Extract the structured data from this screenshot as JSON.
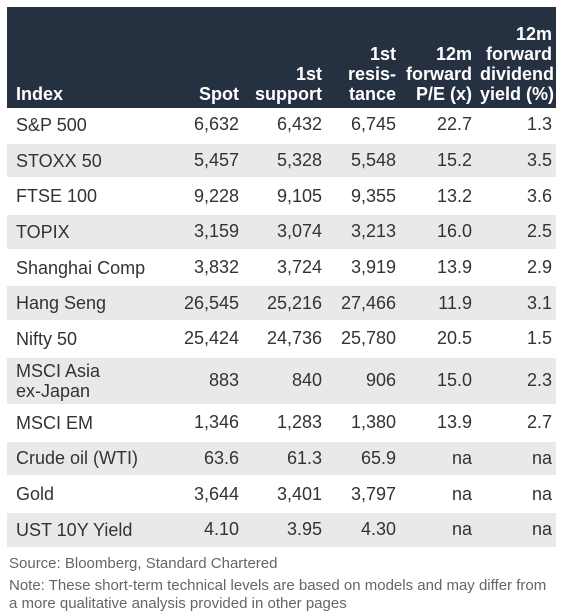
{
  "table": {
    "headers": [
      {
        "lines": [
          "Index"
        ]
      },
      {
        "lines": [
          "Spot"
        ]
      },
      {
        "lines": [
          "1st",
          "support"
        ]
      },
      {
        "lines": [
          "1st",
          "resis-",
          "tance"
        ]
      },
      {
        "lines": [
          "12m",
          "forward",
          "P/E (x)"
        ]
      },
      {
        "lines": [
          "12m",
          "forward",
          "dividend",
          "yield (%)"
        ]
      }
    ],
    "rows": [
      {
        "index": [
          "S&P 500"
        ],
        "spot": "6,632",
        "support": "6,432",
        "resistance": "6,745",
        "pe": "22.7",
        "yield": "1.3"
      },
      {
        "index": [
          "STOXX 50"
        ],
        "spot": "5,457",
        "support": "5,328",
        "resistance": "5,548",
        "pe": "15.2",
        "yield": "3.5"
      },
      {
        "index": [
          "FTSE 100"
        ],
        "spot": "9,228",
        "support": "9,105",
        "resistance": "9,355",
        "pe": "13.2",
        "yield": "3.6"
      },
      {
        "index": [
          "TOPIX"
        ],
        "spot": "3,159",
        "support": "3,074",
        "resistance": "3,213",
        "pe": "16.0",
        "yield": "2.5"
      },
      {
        "index": [
          "Shanghai Comp"
        ],
        "spot": "3,832",
        "support": "3,724",
        "resistance": "3,919",
        "pe": "13.9",
        "yield": "2.9"
      },
      {
        "index": [
          "Hang Seng"
        ],
        "spot": "26,545",
        "support": "25,216",
        "resistance": "27,466",
        "pe": "11.9",
        "yield": "3.1"
      },
      {
        "index": [
          "Nifty 50"
        ],
        "spot": "25,424",
        "support": "24,736",
        "resistance": "25,780",
        "pe": "20.5",
        "yield": "1.5"
      },
      {
        "index": [
          "MSCI Asia",
          "ex-Japan"
        ],
        "spot": "883",
        "support": "840",
        "resistance": "906",
        "pe": "15.0",
        "yield": "2.3"
      },
      {
        "index": [
          "MSCI EM"
        ],
        "spot": "1,346",
        "support": "1,283",
        "resistance": "1,380",
        "pe": "13.9",
        "yield": "2.7"
      },
      {
        "index": [
          "Crude oil (WTI)"
        ],
        "spot": "63.6",
        "support": "61.3",
        "resistance": "65.9",
        "pe": "na",
        "yield": "na"
      },
      {
        "index": [
          "Gold"
        ],
        "spot": "3,644",
        "support": "3,401",
        "resistance": "3,797",
        "pe": "na",
        "yield": "na"
      },
      {
        "index": [
          "UST 10Y Yield"
        ],
        "spot": "4.10",
        "support": "3.95",
        "resistance": "4.30",
        "pe": "na",
        "yield": "na"
      }
    ]
  },
  "footer": {
    "source": "Source: Bloomberg, Standard Chartered",
    "note": "Note: These short-term technical levels are based on models and may differ from a more qualitative analysis provided in other pages"
  }
}
